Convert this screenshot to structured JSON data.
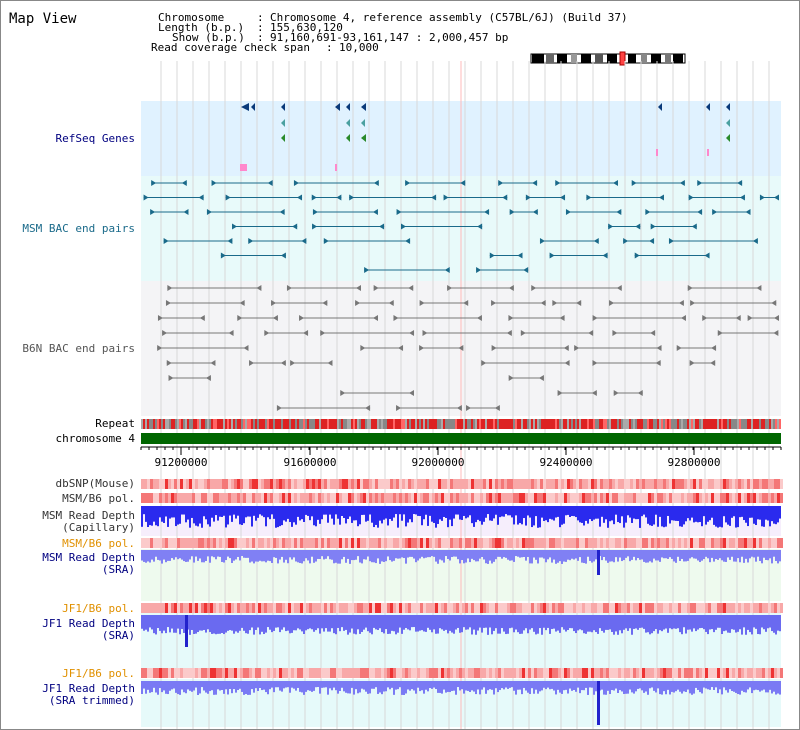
{
  "title": "Map View",
  "info": {
    "chromosome_label": "Chromosome",
    "chromosome_value": "Chromosome 4, reference assembly (C57BL/6J) (Build 37)",
    "length_label": "Length (b.p.)",
    "length_value": "155,630,120",
    "show_label": "Show (b.p.)",
    "show_value": "91,160,691-93,161,147 : 2,000,457 bp",
    "coverage_label": "Read coverage check span",
    "coverage_value": "10,000"
  },
  "tracks": {
    "refseq": "RefSeq Genes",
    "msm_bac": "MSM BAC end pairs",
    "b6n_bac": "B6N BAC end pairs",
    "repeat": "Repeat",
    "chromosome": "chromosome 4",
    "dbsnp": "dbSNP(Mouse)",
    "msm_b6_pol": "MSM/B6 pol.",
    "msm_depth_cap_1": "MSM Read Depth",
    "msm_depth_cap_2": "(Capillary)",
    "msm_b6_pol_2": "MSM/B6 pol.",
    "msm_depth_sra_1": "MSM Read Depth",
    "msm_depth_sra_2": "(SRA)",
    "jf1_b6_pol": "JF1/B6 pol.",
    "jf1_depth_sra_1": "JF1 Read Depth",
    "jf1_depth_sra_2": "(SRA)",
    "jf1_b6_pol_2": "JF1/B6 pol.",
    "jf1_depth_trim_1": "JF1 Read Depth",
    "jf1_depth_trim_2": "(SRA trimmed)"
  },
  "axis": {
    "ticks": [
      "91200000",
      "91600000",
      "92000000",
      "92400000",
      "92800000"
    ]
  },
  "colors": {
    "refseq_bg": "#e0f2ff",
    "bac_bg": "#e8fafa",
    "b6n_bg": "#f4f4f6",
    "msm_bac_color": "#1a6a8a",
    "b6n_color": "#666666",
    "chromosome_bar": "#006600",
    "track_label_blue": "#000080",
    "track_label_orange": "#e09000",
    "depth_blue": "#2222ee",
    "depth_light_blue": "#7777ff"
  }
}
